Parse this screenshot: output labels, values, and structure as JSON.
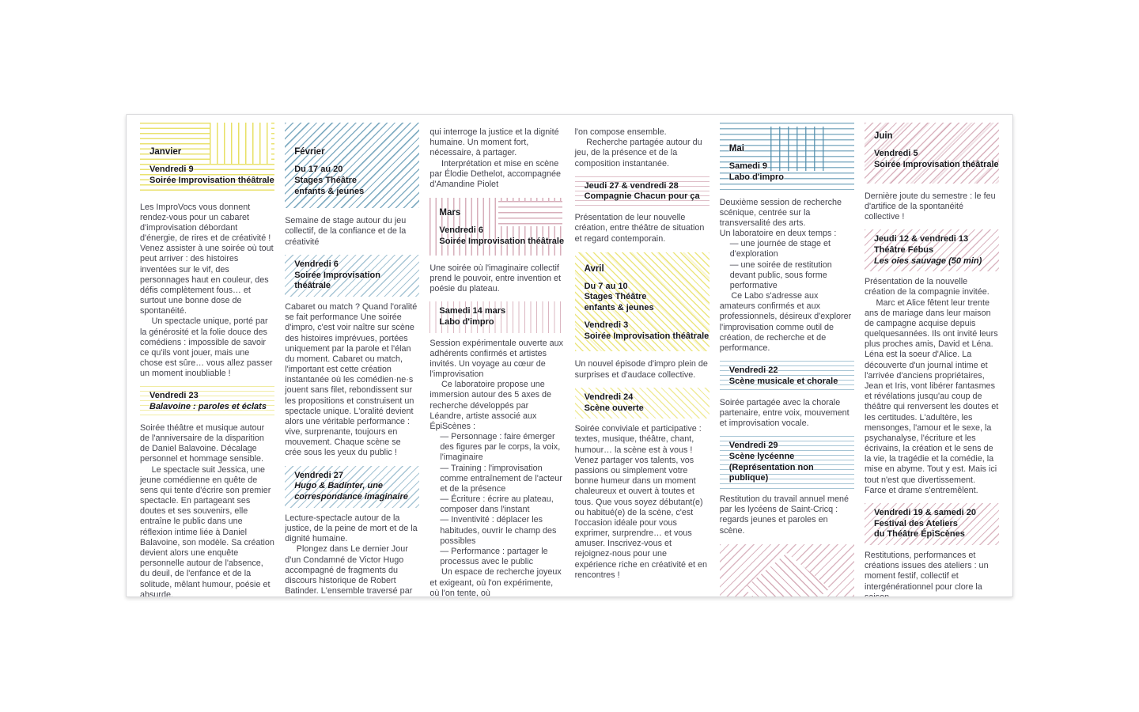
{
  "palette": {
    "yellow": "#e6dd55",
    "blue": "#4f8cab",
    "rose": "#b06078"
  },
  "col1": {
    "month": "Janvier",
    "event": [
      "Vendredi 9",
      "Soirée Improvisation théâtrale"
    ],
    "body1": [
      "Les ImproVocs vous donnent rendez-vous pour un cabaret d'improvisation débordant d'énergie, de rires et de créativité ! Venez assister à une soirée où tout peut arriver : des histoires inventées sur le vif, des personnages haut en couleur, des défis complètement fous… et surtout une bonne dose de spontanéité.",
      "Un spectacle unique, porté par la générosité et la folie douce des comédiens : impossible de savoir ce qu'ils vont jouer, mais une chose est sûre… vous allez passer un moment inoubliable !"
    ],
    "h1": [
      "Vendredi 23",
      "Balavoine : paroles et éclats"
    ],
    "body2": [
      "Soirée théâtre et musique autour de l'anniversaire de la disparition de Daniel Balavoine. Décalage personnel et hommage sensible.",
      "Le spectacle suit Jessica, une jeune comédienne en quête de sens qui tente d'écrire son premier spectacle. En partageant ses doutes et ses souvenirs, elle entraîne le public dans une réflexion intime liée à Daniel Balavoine, son modèle. Sa création devient alors une enquête personnelle autour de l'absence, du deuil, de l'enfance et de la solitude, mêlant humour, poésie et absurde."
    ]
  },
  "col2": {
    "month": "Février",
    "event": [
      "Du 17 au 20",
      "Stages Théâtre",
      "enfants & jeunes"
    ],
    "body1": [
      "Semaine de stage autour du jeu collectif, de la confiance et de la créativité"
    ],
    "h1": [
      "Vendredi 6",
      "Soirée Improvisation théâtrale"
    ],
    "body2": [
      "Cabaret ou match ? Quand l'oralité se fait performance Une soirée d'impro, c'est voir naître sur scène des histoires imprévues, portées uniquement par la parole et l'élan du moment. Cabaret ou match, l'important est cette création instantanée où les comédien·ne·s jouent sans filet, rebondissent sur les propositions et construisent un spectacle unique. L'oralité devient alors une véritable performance : vive, surprenante, toujours en mouvement. Chaque scène se crée sous les yeux du public !"
    ],
    "h2": [
      "Vendredi 27",
      "Hugo & Badinter, une correspondance imaginaire"
    ],
    "body3": [
      "Lecture-spectacle autour de la justice, de la peine de mort et de la dignité humaine.",
      "Plongez dans Le dernier Jour d'un Condamné de Victor Hugo accompagné de fragments du discours historique de Robert Batinder. L'ensemble traversé par un élan chorégraphique. Une mise en voix sensible et habitée,"
    ]
  },
  "col3": {
    "body1": [
      "qui interroge la justice et la dignité humaine. Un moment fort, nécessaire, à partager.",
      "Interprétation et mise en scène par Élodie Dethelot, accompagnée d'Amandine Piolet"
    ],
    "month": "Mars",
    "event": [
      "Vendredi 6",
      "Soirée Improvisation théâtrale"
    ],
    "body2": [
      "Une soirée où l'imaginaire collectif prend le pouvoir, entre invention et poésie du plateau."
    ],
    "h1": [
      "Samedi 14 mars",
      "Labo d'impro"
    ],
    "body3": [
      "Session expérimentale ouverte aux adhérents confirmés et artistes invités. Un voyage au cœur de l'improvisation",
      "Ce laboratoire propose une immersion autour des 5 axes de recherche développés par Léandre, artiste associé aux ÉpiScènes :",
      "— Personnage : faire émerger des figures par le corps, la voix, l'imaginaire",
      "— Training : l'improvisation comme entraînement de l'acteur et de la présence",
      "— Écriture : écrire au plateau, composer dans l'instant",
      "— Inventivité : déplacer les habitudes, ouvrir le champ des possibles",
      "— Performance : partager le processus avec le public",
      "Un espace de recherche joyeux et exigeant, où l'on expérimente, où l'on tente, où"
    ]
  },
  "col4": {
    "body1": [
      "l'on compose ensemble.",
      "Recherche partagée autour du jeu, de la présence et de la composition instantanée."
    ],
    "h1": [
      "Jeudi 27 & vendredi 28",
      "Compagnie Chacun pour ça"
    ],
    "body2": [
      "Présentation de leur nouvelle création, entre théâtre de situation et regard contemporain."
    ],
    "month": "Avril",
    "event1": [
      "Du 7 au 10",
      "Stages Théâtre",
      "enfants & jeunes"
    ],
    "event2": [
      "Vendredi 3",
      "Soirée Improvisation théâtrale"
    ],
    "body3": [
      "Un nouvel épisode d'impro plein de surprises et d'audace collective."
    ],
    "h2": [
      "Vendredi 24",
      "Scène ouverte"
    ],
    "body4": [
      "Soirée conviviale et participative : textes, musique, théâtre, chant, humour… la scène est à vous ! Venez partager vos talents, vos passions ou simplement votre bonne humeur dans un moment chaleureux et ouvert à toutes et tous. Que vous soyez débutant(e) ou habitué(e) de la scène, c'est l'occasion idéale pour vous exprimer, surprendre… et vous amuser. Inscrivez-vous et rejoignez-nous pour une expérience riche en créativité et en rencontres !"
    ]
  },
  "col5": {
    "month": "Mai",
    "event": [
      "Samedi 9",
      "Labo d'impro"
    ],
    "body1": [
      "Deuxième session de recherche scénique, centrée sur la transversalité des arts.",
      "Un laboratoire en deux temps :",
      "— une journée de stage et d'exploration",
      "— une soirée de restitution devant public, sous forme performative",
      "Ce Labo s'adresse aux amateurs confirmés et aux professionnels, désireux d'explorer l'improvisation comme outil de création, de recherche et de performance."
    ],
    "h1": [
      "Vendredi 22",
      "Scène musicale et chorale"
    ],
    "body2": [
      "Soirée partagée avec la chorale partenaire, entre voix, mouvement et improvisation vocale."
    ],
    "h2": [
      "Vendredi 29",
      "Scène lycéenne",
      "(Représentation non publique)"
    ],
    "body3": [
      "Restitution du travail annuel mené par les lycéens de Saint-Cricq : regards jeunes et paroles en scène."
    ]
  },
  "col6": {
    "month": "Juin",
    "event": [
      "Vendredi 5",
      "Soirée Improvisation théâtrale"
    ],
    "body1": [
      "Dernière joute du semestre : le feu d'artifice de la spontanéité collective !"
    ],
    "h1": [
      "Jeudi 12 & vendredi 13",
      "Théâtre Fébus",
      "Les oies sauvage (50 min)"
    ],
    "body2": [
      "Présentation de la nouvelle création de la compagnie invitée.",
      "Marc et Alice fêtent leur trente ans de mariage dans leur maison de campagne acquise depuis quelquesannées. Ils ont invité leurs plus proches amis, David et Léna. Léna est la soeur d'Alice. La découverte d'un journal intime et l'arrivée d'anciens propriétaires, Jean et Iris, vont libérer fantasmes et révélations jusqu'au coup de théâtre qui renversent les doutes et les certitudes. L'adultère, les mensonges, l'amour et le sexe, la psychanalyse, l'écriture et les écrivains, la création et le sens de la vie, la tragédie et la comédie, la mise en abyme. Tout y est. Mais ici tout n'est que divertissement. Farce et drame s'entremêlent."
    ],
    "h2": [
      "Vendredi 19 & samedi 20",
      "Festival des Ateliers",
      "du Théâtre ÉpiScènes"
    ],
    "body3": [
      "Restitutions, performances et créations issues des ateliers : un moment festif, collectif et intergénérationnel pour clore la saison."
    ]
  }
}
